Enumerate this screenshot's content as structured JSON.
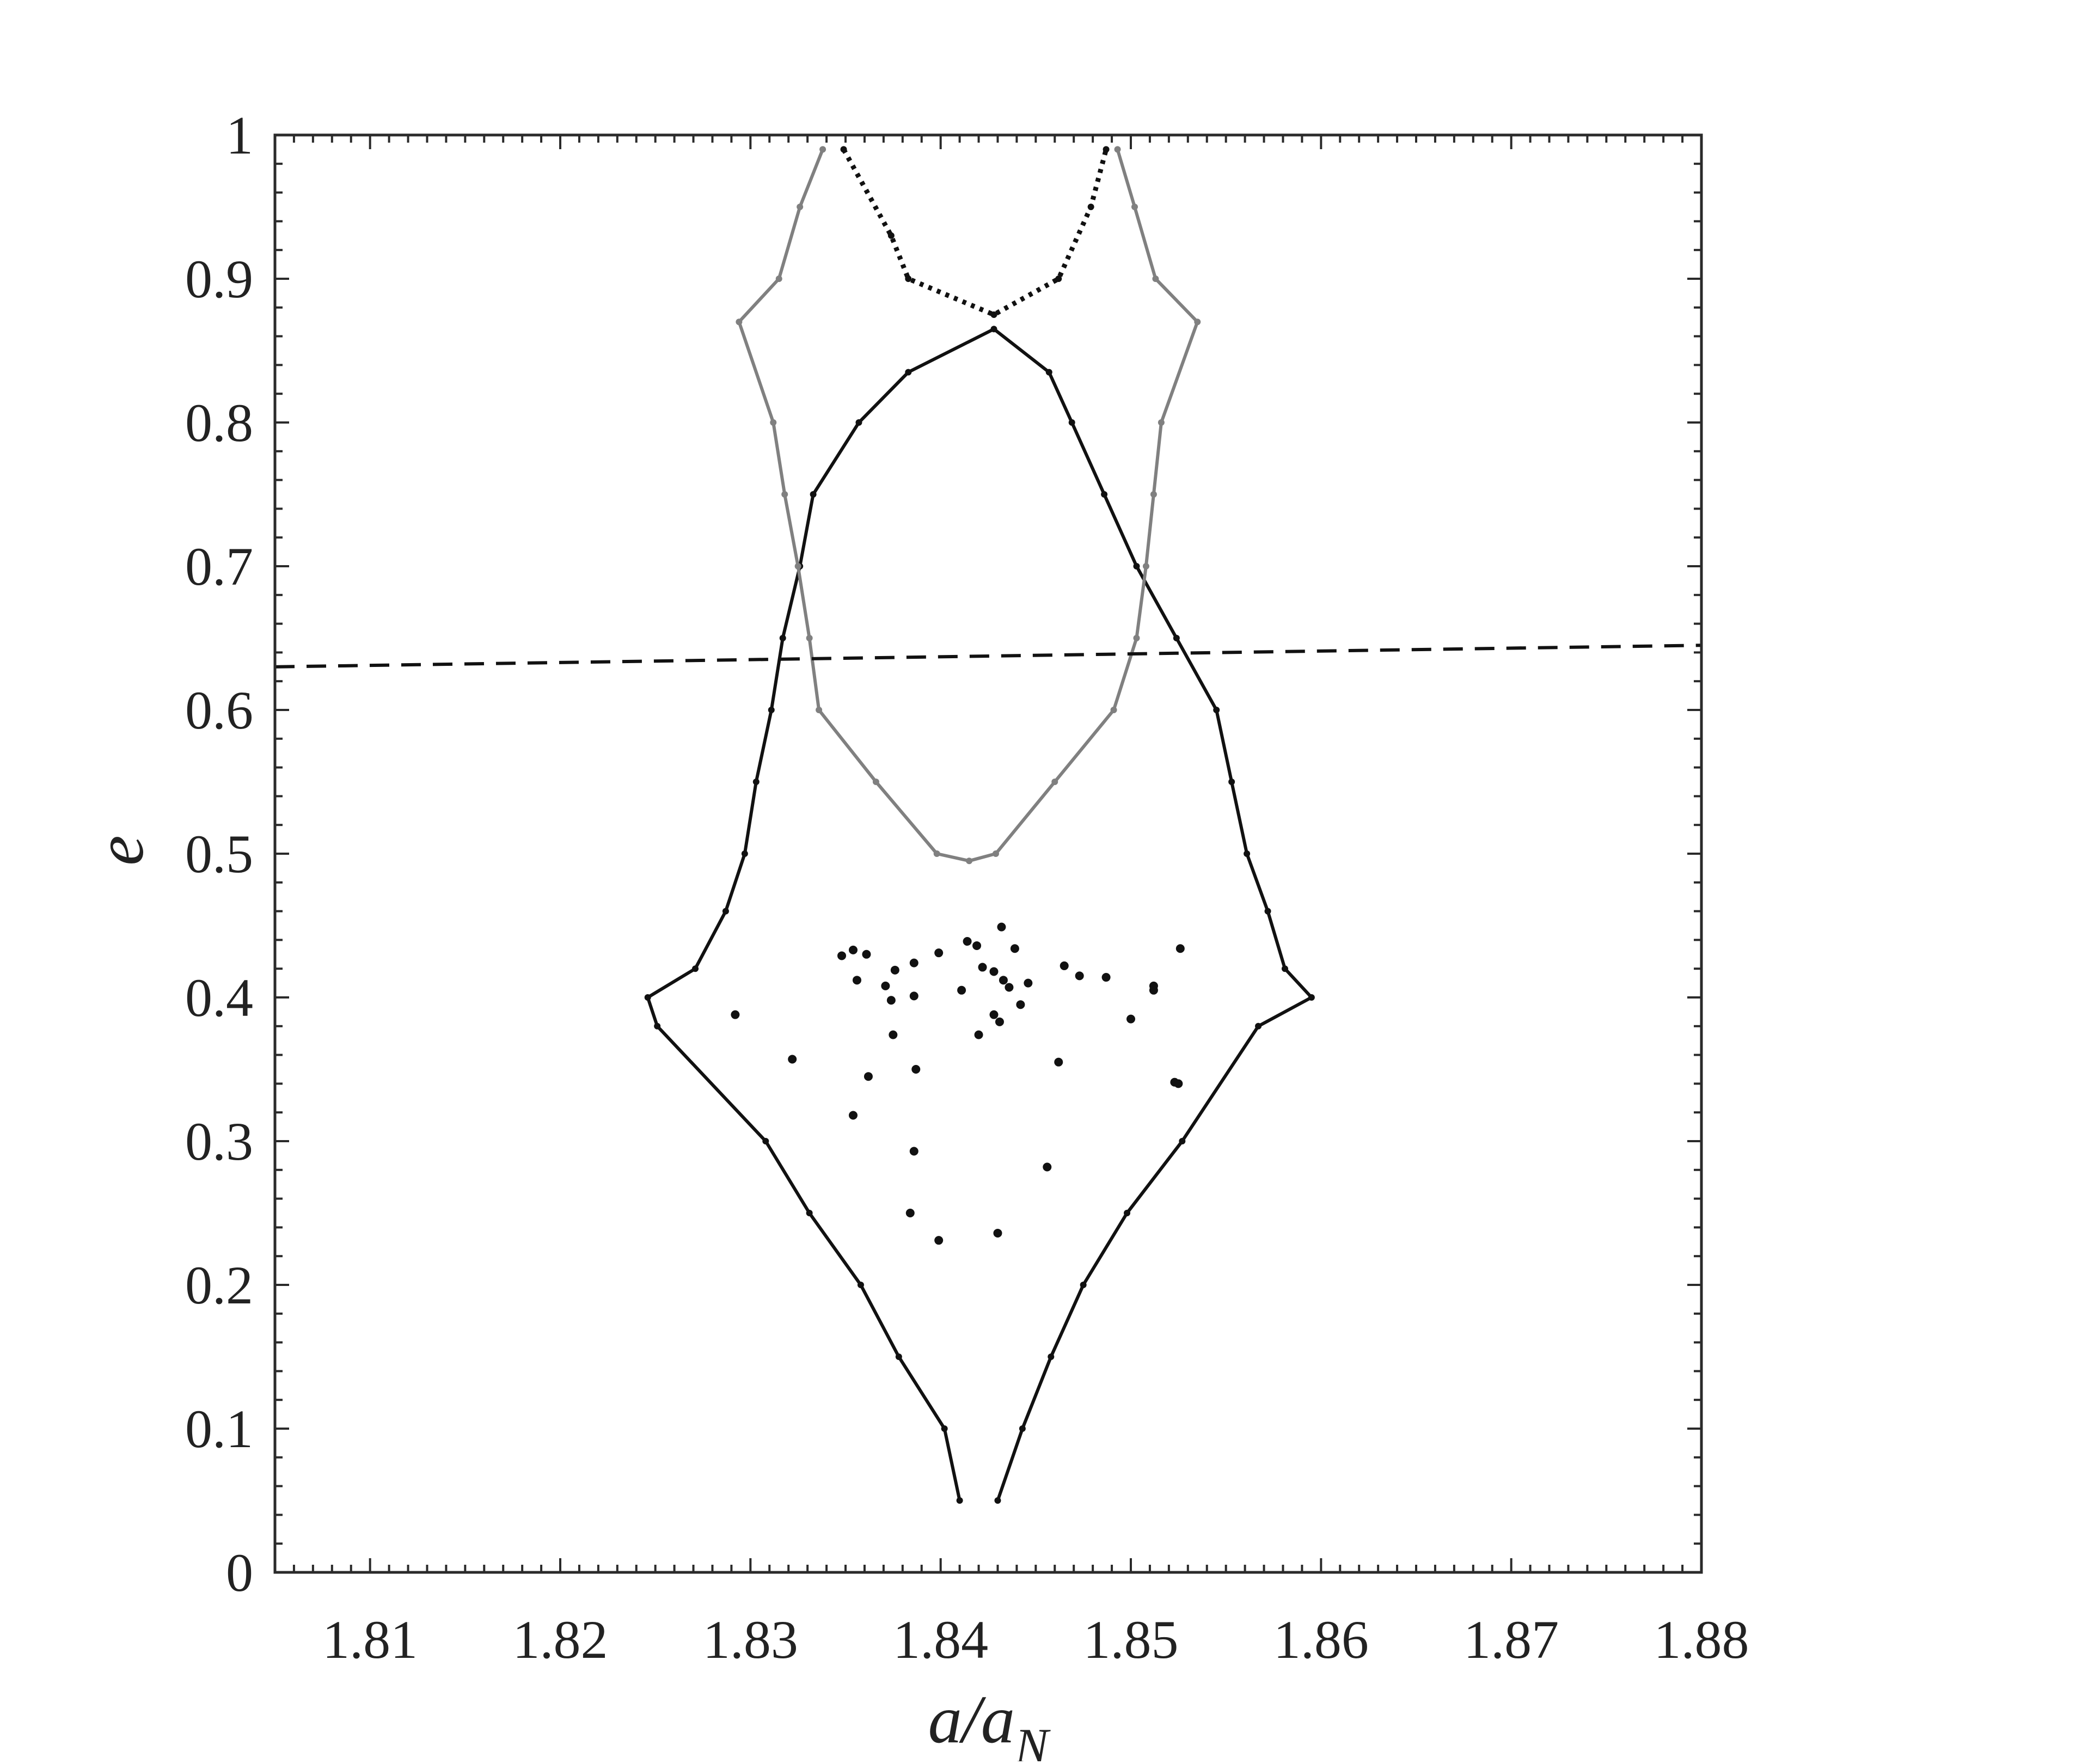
{
  "chart_data": {
    "type": "line",
    "title": "",
    "xlabel": "a/a",
    "xlabel_subscript": "N",
    "ylabel": "e",
    "xlim": [
      1.805,
      1.88
    ],
    "ylim": [
      0,
      1
    ],
    "xticks": [
      1.81,
      1.82,
      1.83,
      1.84,
      1.85,
      1.86,
      1.87,
      1.88
    ],
    "xtick_labels": [
      "1.81",
      "1.82",
      "1.83",
      "1.84",
      "1.85",
      "1.86",
      "1.87",
      "1.88"
    ],
    "yticks": [
      0,
      0.1,
      0.2,
      0.3,
      0.4,
      0.5,
      0.6,
      0.7,
      0.8,
      0.9,
      1
    ],
    "ytick_labels": [
      "0",
      "0.1",
      "0.2",
      "0.3",
      "0.4",
      "0.5",
      "0.6",
      "0.7",
      "0.8",
      "0.9",
      "1"
    ],
    "grid": false,
    "legend": "none",
    "series": [
      {
        "style": "solid",
        "color": "#111111",
        "points": [
          [
            1.841,
            0.05
          ],
          [
            1.8402,
            0.1
          ],
          [
            1.8378,
            0.15
          ],
          [
            1.8358,
            0.2
          ],
          [
            1.8331,
            0.25
          ],
          [
            1.8308,
            0.3
          ],
          [
            1.8251,
            0.38
          ],
          [
            1.8246,
            0.4
          ],
          [
            1.8271,
            0.42
          ],
          [
            1.8287,
            0.46
          ],
          [
            1.8297,
            0.5
          ],
          [
            1.8303,
            0.55
          ],
          [
            1.8311,
            0.6
          ],
          [
            1.8317,
            0.65
          ],
          [
            1.8326,
            0.7
          ],
          [
            1.8333,
            0.75
          ],
          [
            1.8357,
            0.8
          ],
          [
            1.8383,
            0.835
          ],
          [
            1.8428,
            0.865
          ],
          [
            1.8457,
            0.835
          ],
          [
            1.8469,
            0.8
          ],
          [
            1.8486,
            0.75
          ],
          [
            1.8503,
            0.7
          ],
          [
            1.8524,
            0.65
          ],
          [
            1.8545,
            0.6
          ],
          [
            1.8553,
            0.55
          ],
          [
            1.8561,
            0.5
          ],
          [
            1.8572,
            0.46
          ],
          [
            1.8581,
            0.42
          ],
          [
            1.8595,
            0.4
          ],
          [
            1.8567,
            0.38
          ],
          [
            1.8527,
            0.3
          ],
          [
            1.8498,
            0.25
          ],
          [
            1.8475,
            0.2
          ],
          [
            1.8458,
            0.15
          ],
          [
            1.8443,
            0.1
          ],
          [
            1.843,
            0.05
          ]
        ]
      },
      {
        "style": "solid",
        "color": "#808080",
        "points": [
          [
            1.8338,
            0.99
          ],
          [
            1.8326,
            0.95
          ],
          [
            1.8315,
            0.9
          ],
          [
            1.8294,
            0.87
          ],
          [
            1.8312,
            0.8
          ],
          [
            1.8318,
            0.75
          ],
          [
            1.8325,
            0.7
          ],
          [
            1.8331,
            0.65
          ],
          [
            1.8336,
            0.6
          ],
          [
            1.8366,
            0.55
          ],
          [
            1.8398,
            0.5
          ],
          [
            1.8415,
            0.495
          ],
          [
            1.8429,
            0.5
          ],
          [
            1.846,
            0.55
          ],
          [
            1.8491,
            0.6
          ],
          [
            1.8503,
            0.65
          ],
          [
            1.8508,
            0.7
          ],
          [
            1.8512,
            0.75
          ],
          [
            1.8516,
            0.8
          ],
          [
            1.8535,
            0.87
          ],
          [
            1.8513,
            0.9
          ],
          [
            1.8502,
            0.95
          ],
          [
            1.8493,
            0.99
          ]
        ]
      },
      {
        "style": "dotted",
        "color": "#111111",
        "points": [
          [
            1.8349,
            0.99
          ],
          [
            1.8374,
            0.93
          ],
          [
            1.8383,
            0.9
          ],
          [
            1.8428,
            0.875
          ],
          [
            1.8462,
            0.9
          ],
          [
            1.8479,
            0.95
          ],
          [
            1.8487,
            0.99
          ]
        ]
      },
      {
        "style": "dashed",
        "color": "#111111",
        "points": [
          [
            1.805,
            0.63
          ],
          [
            1.88,
            0.645
          ]
        ]
      }
    ],
    "scatter": [
      [
        1.8292,
        0.388
      ],
      [
        1.8322,
        0.357
      ],
      [
        1.8348,
        0.429
      ],
      [
        1.8354,
        0.433
      ],
      [
        1.8361,
        0.43
      ],
      [
        1.8356,
        0.412
      ],
      [
        1.8371,
        0.408
      ],
      [
        1.8376,
        0.419
      ],
      [
        1.8386,
        0.424
      ],
      [
        1.8399,
        0.431
      ],
      [
        1.8374,
        0.398
      ],
      [
        1.8386,
        0.401
      ],
      [
        1.8411,
        0.405
      ],
      [
        1.8414,
        0.439
      ],
      [
        1.8419,
        0.436
      ],
      [
        1.8422,
        0.421
      ],
      [
        1.8428,
        0.418
      ],
      [
        1.8432,
        0.449
      ],
      [
        1.8439,
        0.434
      ],
      [
        1.8433,
        0.412
      ],
      [
        1.8436,
        0.407
      ],
      [
        1.8446,
        0.41
      ],
      [
        1.8442,
        0.395
      ],
      [
        1.8428,
        0.388
      ],
      [
        1.8431,
        0.383
      ],
      [
        1.842,
        0.374
      ],
      [
        1.8375,
        0.374
      ],
      [
        1.8362,
        0.345
      ],
      [
        1.8387,
        0.35
      ],
      [
        1.8354,
        0.318
      ],
      [
        1.8386,
        0.293
      ],
      [
        1.8384,
        0.25
      ],
      [
        1.8399,
        0.231
      ],
      [
        1.843,
        0.236
      ],
      [
        1.8456,
        0.282
      ],
      [
        1.8462,
        0.355
      ],
      [
        1.8465,
        0.422
      ],
      [
        1.8473,
        0.415
      ],
      [
        1.8487,
        0.414
      ],
      [
        1.85,
        0.385
      ],
      [
        1.8512,
        0.408
      ],
      [
        1.8512,
        0.405
      ],
      [
        1.8523,
        0.341
      ],
      [
        1.8525,
        0.34
      ],
      [
        1.8526,
        0.434
      ]
    ]
  }
}
